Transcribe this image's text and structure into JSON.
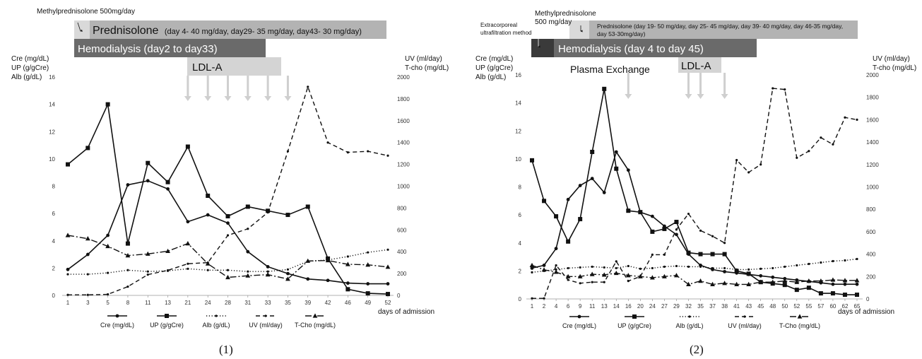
{
  "chart_data": [
    {
      "type": "line",
      "panel_label": "(1)",
      "xlabel": "days of admission",
      "categories": [
        "1",
        "3",
        "5",
        "8",
        "11",
        "13",
        "21",
        "24",
        "28",
        "31",
        "33",
        "35",
        "39",
        "42",
        "46",
        "49",
        "52"
      ],
      "left_axis_title": [
        "Cre (mg/dL)",
        "UP (g/gCre)",
        "Alb (g/dL)"
      ],
      "right_axis_title": [
        "UV (ml/day)",
        "T-cho (mg/dL)"
      ],
      "left_ticks": [
        "0",
        "2",
        "4",
        "6",
        "8",
        "10",
        "12",
        "14",
        "16"
      ],
      "right_ticks": [
        "0",
        "200",
        "400",
        "600",
        "800",
        "1000",
        "1200",
        "1400",
        "1600",
        "1800",
        "2000"
      ],
      "ylim_left": [
        0,
        16
      ],
      "ylim_right": [
        0,
        2000
      ],
      "series": [
        {
          "name": "Cre (mg/dL)",
          "axis": "left",
          "style": "solid",
          "marker": "circle",
          "values": [
            1.9,
            3.0,
            4.4,
            8.1,
            8.4,
            7.8,
            5.4,
            5.9,
            5.3,
            3.2,
            2.1,
            1.6,
            1.2,
            1.1,
            0.9,
            0.85,
            0.85
          ]
        },
        {
          "name": "UP (g/gCre)",
          "axis": "left",
          "style": "solid",
          "marker": "square",
          "values": [
            9.6,
            10.8,
            14.0,
            3.8,
            9.7,
            8.3,
            10.9,
            7.3,
            5.8,
            6.5,
            6.2,
            5.9,
            6.5,
            2.7,
            0.45,
            0.15,
            0.1
          ]
        },
        {
          "name": "Alb (g/dL)",
          "axis": "left",
          "style": "dotted",
          "marker": "dot",
          "values": [
            1.55,
            1.55,
            1.65,
            1.85,
            1.75,
            1.8,
            1.95,
            1.85,
            1.85,
            1.75,
            1.75,
            1.9,
            2.5,
            2.6,
            2.85,
            3.15,
            3.35
          ]
        },
        {
          "name": "UV (ml/day)",
          "axis": "right",
          "style": "dashed",
          "marker": "dot",
          "values": [
            5,
            5,
            10,
            80,
            190,
            230,
            290,
            300,
            550,
            610,
            760,
            1320,
            1910,
            1400,
            1310,
            1320,
            1280
          ]
        },
        {
          "name": "T-Cho (mg/dL)",
          "axis": "right",
          "style": "dashdot",
          "marker": "triangle",
          "values": [
            550,
            520,
            450,
            365,
            380,
            405,
            475,
            290,
            165,
            180,
            190,
            150,
            315,
            320,
            285,
            280,
            260
          ]
        }
      ],
      "treatments": [
        {
          "label": "Methylprednisolone 500mg/day"
        },
        {
          "label": "Prednisolone",
          "detail": "(day 4- 40 mg/day, day29- 35 mg/day, day43- 30 mg/day)"
        },
        {
          "label": "Hemodialysis (day2 to day33)"
        },
        {
          "label": "LDL-A"
        }
      ],
      "ldl_arrow_days": [
        "21",
        "24",
        "28",
        "31",
        "33",
        "35"
      ]
    },
    {
      "type": "line",
      "panel_label": "(2)",
      "xlabel": "days of admission",
      "categories": [
        "1",
        "2",
        "4",
        "6",
        "9",
        "11",
        "13",
        "14",
        "16",
        "20",
        "24",
        "27",
        "29",
        "32",
        "35",
        "37",
        "38",
        "41",
        "43",
        "45",
        "48",
        "50",
        "52",
        "55",
        "57",
        "60",
        "62",
        "65"
      ],
      "left_axis_title": [
        "Cre (mg/dL)",
        "UP (g/gCre)",
        "Alb (g/dL)"
      ],
      "right_axis_title": [
        "UV (ml/day)",
        "T-cho (mg/dL)"
      ],
      "left_ticks": [
        "0",
        "2",
        "4",
        "6",
        "8",
        "10",
        "12",
        "14",
        "16"
      ],
      "right_ticks": [
        "0",
        "200",
        "400",
        "600",
        "800",
        "1000",
        "1200",
        "1400",
        "1600",
        "1800",
        "2000"
      ],
      "ylim_left": [
        0,
        16
      ],
      "ylim_right": [
        0,
        2000
      ],
      "series": [
        {
          "name": "Cre (mg/dL)",
          "axis": "left",
          "style": "solid",
          "marker": "circle",
          "values": [
            2.2,
            2.4,
            3.6,
            7.1,
            8.1,
            8.6,
            7.6,
            10.5,
            9.2,
            6.2,
            5.9,
            5.2,
            4.6,
            3.2,
            2.4,
            2.1,
            1.95,
            1.85,
            1.75,
            1.65,
            1.55,
            1.45,
            1.35,
            1.25,
            1.15,
            1.05,
            1.05,
            1.05
          ]
        },
        {
          "name": "UP (g/gCre)",
          "axis": "left",
          "style": "solid",
          "marker": "square",
          "values": [
            9.9,
            7.0,
            5.9,
            4.1,
            5.7,
            10.5,
            15.0,
            9.3,
            6.3,
            6.2,
            4.8,
            5.0,
            5.5,
            3.3,
            3.2,
            3.2,
            3.2,
            2.0,
            1.8,
            1.2,
            1.1,
            1.0,
            0.65,
            0.8,
            0.4,
            0.4,
            0.3,
            0.3
          ]
        },
        {
          "name": "Alb (g/dL)",
          "axis": "left",
          "style": "dotted",
          "marker": "dot",
          "values": [
            1.9,
            2.0,
            2.1,
            2.2,
            2.25,
            2.3,
            2.25,
            2.2,
            2.35,
            2.15,
            2.2,
            2.3,
            2.35,
            2.3,
            2.3,
            2.2,
            2.2,
            2.1,
            2.1,
            2.15,
            2.2,
            2.3,
            2.4,
            2.5,
            2.6,
            2.7,
            2.75,
            2.85
          ]
        },
        {
          "name": "UV (ml/day)",
          "axis": "right",
          "style": "dashed",
          "marker": "dot",
          "values": [
            5,
            5,
            300,
            170,
            140,
            150,
            150,
            335,
            160,
            200,
            395,
            395,
            620,
            760,
            610,
            560,
            500,
            1240,
            1130,
            1200,
            1880,
            1870,
            1260,
            1320,
            1440,
            1380,
            1620,
            1600
          ]
        },
        {
          "name": "T-Cho (mg/dL)",
          "axis": "right",
          "style": "dashdot",
          "marker": "triangle",
          "values": [
            300,
            260,
            240,
            200,
            200,
            220,
            215,
            230,
            210,
            200,
            190,
            200,
            210,
            130,
            160,
            130,
            140,
            130,
            130,
            150,
            150,
            160,
            150,
            160,
            160,
            170,
            165,
            165
          ]
        }
      ],
      "treatments": [
        {
          "label": "Extracorporeal ultrafiltration method"
        },
        {
          "label": "Methylprednisolone 500 mg/day"
        },
        {
          "label": "Prednisolone",
          "detail": "(day 19- 50 mg/day, day 25- 45 mg/day, day 39- 40 mg/day, day 46-35 mg/day, day 53-30mg/day)"
        },
        {
          "label": "Hemodialysis (day 4 to day 45)"
        },
        {
          "label": "LDL-A"
        },
        {
          "label": "Plasma Exchange"
        }
      ]
    }
  ],
  "legend": [
    "Cre (mg/dL)",
    "UP (g/gCre)",
    "Alb (g/dL)",
    "UV (ml/day)",
    "T-Cho (mg/dL)"
  ],
  "colors": {
    "prednisolone_bar": "#b3b3b3",
    "methylpred_bar": "#d9d9d9",
    "hemodialysis_bar": "#6a6a6a",
    "ldla_bar": "#d4d4d4",
    "extracorporeal_bar": "#3a3a3a",
    "line": "#111111",
    "arrow": "#cfcfcf"
  }
}
